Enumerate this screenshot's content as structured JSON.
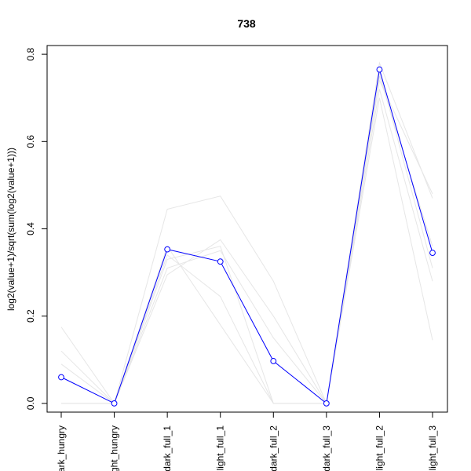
{
  "chart_data": {
    "type": "line",
    "title": "738",
    "xlabel": "",
    "ylabel": "log2(value+1)/sqrt(sum(log2(value+1)))",
    "categories": [
      "dark_hungry",
      "light_hungry",
      "dark_full_1",
      "light_full_1",
      "dark_full_2",
      "dark_full_3",
      "light_full_2",
      "light_full_3"
    ],
    "ylim": [
      -0.02,
      0.82
    ],
    "yticks": [
      "0.0",
      "0.2",
      "0.4",
      "0.6",
      "0.8"
    ],
    "grid": false,
    "highlight": {
      "color": "#0000ff",
      "marker": "open-circle",
      "values": [
        0.06,
        0.0,
        0.353,
        0.325,
        0.097,
        0.0,
        0.765,
        0.345
      ]
    },
    "background_series": {
      "color": "#e6e6e6",
      "series": [
        {
          "values": [
            0.175,
            0.0,
            0.445,
            0.475,
            0.28,
            0.0,
            0.78,
            0.47
          ]
        },
        {
          "values": [
            0.12,
            0.0,
            0.295,
            0.375,
            0.2,
            0.0,
            0.72,
            0.28
          ]
        },
        {
          "values": [
            0.09,
            0.0,
            0.34,
            0.245,
            0.0,
            0.0,
            0.7,
            0.145
          ]
        },
        {
          "values": [
            0.0,
            0.0,
            0.33,
            0.36,
            0.0,
            0.0,
            0.74,
            0.48
          ]
        },
        {
          "values": [
            0.0,
            0.0,
            0.36,
            0.18,
            0.0,
            0.0,
            0.76,
            0.31
          ]
        },
        {
          "values": [
            0.0,
            0.0,
            0.31,
            0.35,
            0.15,
            0.0,
            0.75,
            0.36
          ]
        }
      ]
    }
  }
}
